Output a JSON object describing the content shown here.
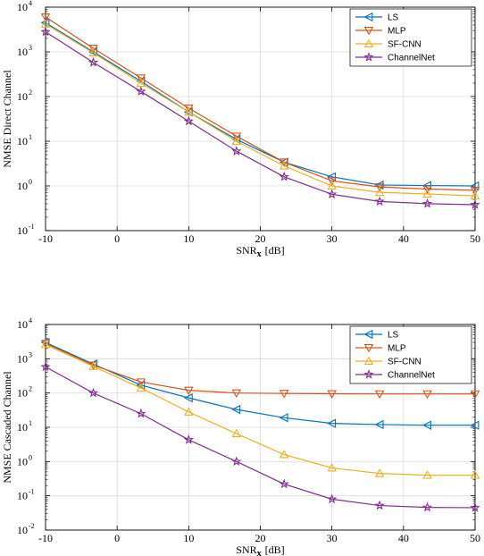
{
  "chart_data": [
    {
      "type": "line",
      "ylabel": "NMSE Direct Channel",
      "xlabel_main": "SNR",
      "xlabel_sub": "x",
      "xlabel_unit": "[dB]",
      "x": [
        -10,
        -3.33,
        3.33,
        10,
        16.67,
        23.33,
        30,
        36.67,
        43.33,
        50
      ],
      "xlim": [
        -10,
        50
      ],
      "xticks": [
        "-10",
        "0",
        "10",
        "20",
        "30",
        "40",
        "50"
      ],
      "xtick_values": [
        -10,
        0,
        10,
        20,
        30,
        40,
        50
      ],
      "yscale": "log",
      "ylim": [
        0.1,
        10000
      ],
      "ytick_exponents": [
        "-1",
        "0",
        "1",
        "2",
        "3",
        "4"
      ],
      "grid": true,
      "legend_position": "top-right",
      "series": [
        {
          "name": "LS",
          "color": "#0072BD",
          "marker": "triangle-left",
          "values": [
            4500,
            1000,
            220,
            45,
            11,
            3.4,
            1.6,
            1.05,
            1.02,
            1.0
          ]
        },
        {
          "name": "MLP",
          "color": "#D95319",
          "marker": "triangle-down",
          "values": [
            6000,
            1200,
            260,
            55,
            13,
            3.4,
            1.3,
            0.95,
            0.85,
            0.8
          ]
        },
        {
          "name": "SF-CNN",
          "color": "#EDB120",
          "marker": "triangle-up",
          "values": [
            4200,
            950,
            200,
            45,
            10,
            2.8,
            1.0,
            0.72,
            0.66,
            0.6
          ]
        },
        {
          "name": "ChannelNet",
          "color": "#7E2F8E",
          "marker": "star",
          "values": [
            2800,
            580,
            130,
            28,
            6,
            1.6,
            0.65,
            0.45,
            0.4,
            0.38
          ]
        }
      ]
    },
    {
      "type": "line",
      "ylabel": "NMSE Cascaded Channel",
      "xlabel_main": "SNR",
      "xlabel_sub": "x",
      "xlabel_unit": "[dB]",
      "x": [
        -10,
        -3.33,
        3.33,
        10,
        16.67,
        23.33,
        30,
        36.67,
        43.33,
        50
      ],
      "xlim": [
        -10,
        50
      ],
      "xticks": [
        "-10",
        "0",
        "10",
        "20",
        "30",
        "40",
        "50"
      ],
      "xtick_values": [
        -10,
        0,
        10,
        20,
        30,
        40,
        50
      ],
      "yscale": "log",
      "ylim": [
        0.01,
        10000
      ],
      "ytick_exponents": [
        "-2",
        "-1",
        "0",
        "1",
        "2",
        "3",
        "4"
      ],
      "grid": true,
      "legend_position": "top-right",
      "series": [
        {
          "name": "LS",
          "color": "#0072BD",
          "marker": "triangle-left",
          "values": [
            3000,
            700,
            170,
            72,
            33,
            19,
            13,
            12,
            11.5,
            11.5
          ]
        },
        {
          "name": "MLP",
          "color": "#D95319",
          "marker": "triangle-down",
          "values": [
            2800,
            650,
            210,
            120,
            100,
            97,
            95,
            94,
            94,
            94
          ]
        },
        {
          "name": "SF-CNN",
          "color": "#EDB120",
          "marker": "triangle-up",
          "values": [
            2600,
            600,
            140,
            28,
            6.5,
            1.6,
            0.65,
            0.45,
            0.4,
            0.4
          ]
        },
        {
          "name": "ChannelNet",
          "color": "#7E2F8E",
          "marker": "star",
          "values": [
            580,
            100,
            25,
            4.3,
            1.0,
            0.22,
            0.08,
            0.052,
            0.046,
            0.045
          ]
        }
      ]
    }
  ]
}
